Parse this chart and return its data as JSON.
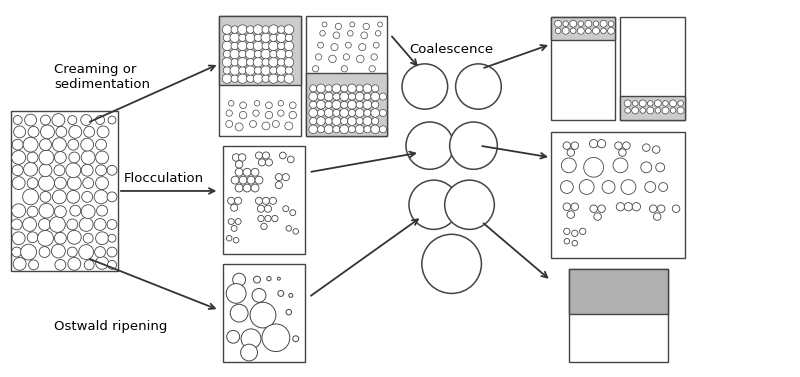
{
  "background_color": "#ffffff",
  "labels": {
    "creaming": "Creaming or\nsedimentation",
    "flocculation": "Flocculation",
    "ostwald": "Ostwald ripening",
    "coalescence": "Coalescence"
  },
  "colors": {
    "outline": "#444444",
    "gray_fill": "#aaaaaa",
    "white": "#ffffff"
  },
  "figsize": [
    8.0,
    3.77
  ],
  "dpi": 100
}
